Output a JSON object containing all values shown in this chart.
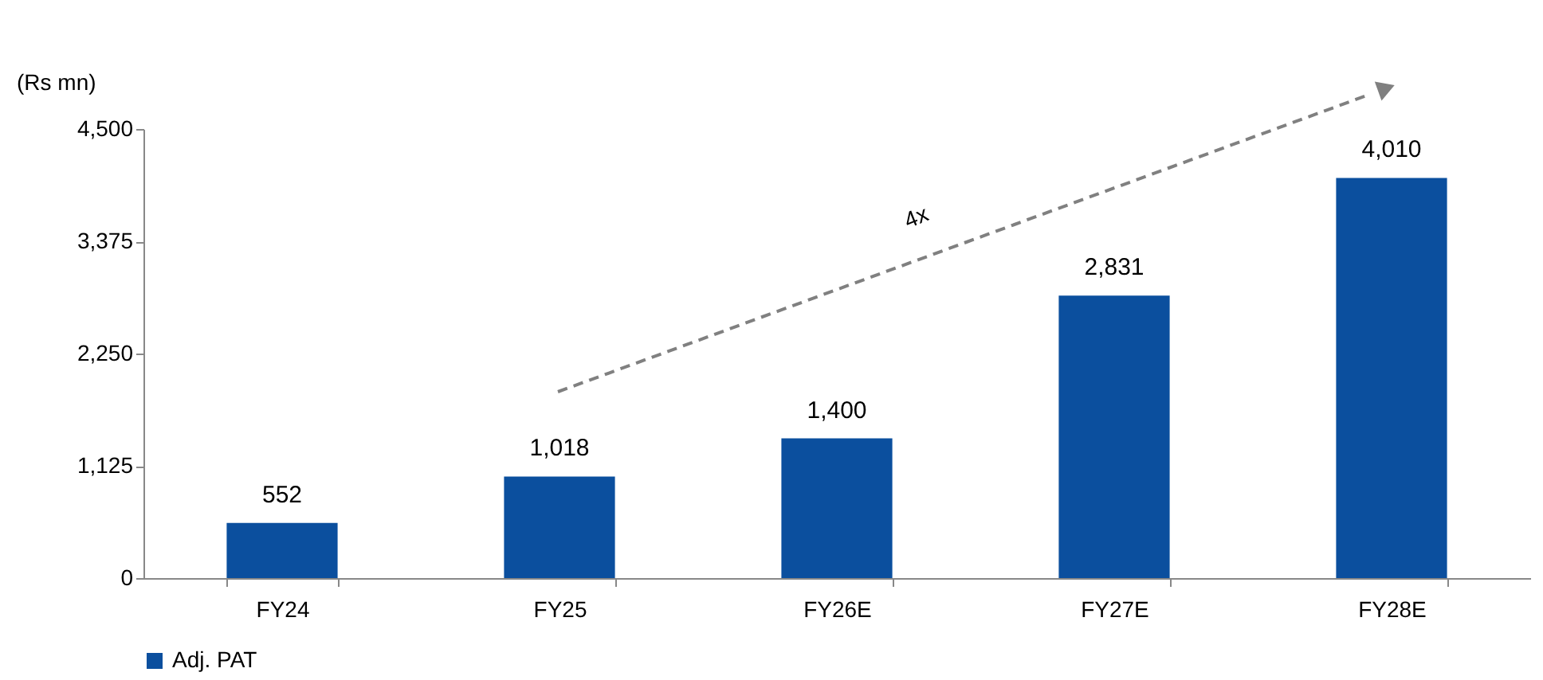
{
  "chart_data": {
    "type": "bar",
    "categories": [
      "FY24",
      "FY25",
      "FY26E",
      "FY27E",
      "FY28E"
    ],
    "series": [
      {
        "name": "Adj. PAT",
        "color": "#0b4f9e",
        "values": [
          552,
          1018,
          1400,
          2831,
          4010
        ],
        "value_labels": [
          "552",
          "1,018",
          "1,400",
          "2,831",
          "4,010"
        ]
      }
    ],
    "ylabel": "(Rs mn)",
    "ylim": [
      0,
      4500
    ],
    "yticks": [
      0,
      {
        "value": 1125,
        "label": "1,125"
      },
      {
        "value": 2250,
        "label": "2,250"
      },
      {
        "value": 3375,
        "label": "3,375"
      },
      {
        "value": 4500,
        "label": "4,500"
      }
    ],
    "legend": "bottom",
    "grid": false,
    "annotations": [
      "4x"
    ]
  }
}
